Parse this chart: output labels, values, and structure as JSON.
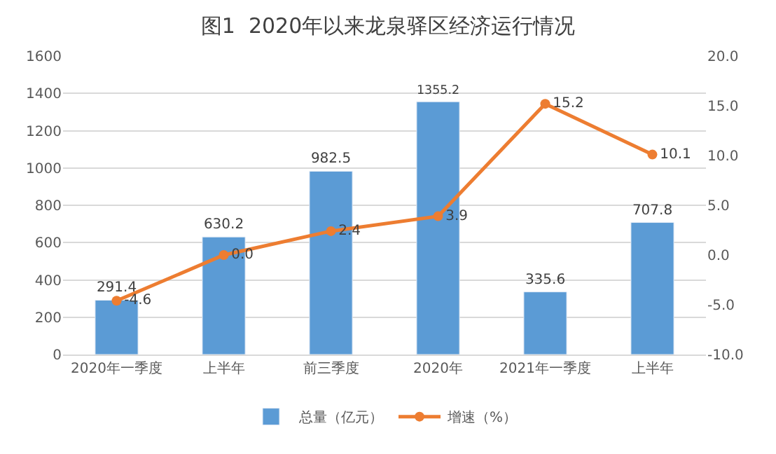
{
  "chart_data": {
    "type": "bar",
    "title": "图1  2020年以来龙泉驿区经济运行情况",
    "categories": [
      "2020年一季度",
      "上半年",
      "前三季度",
      "2020年",
      "2021年一季度",
      "上半年"
    ],
    "series": [
      {
        "name": "总量（亿元）",
        "color": "#5b9bd5",
        "values": [
          291.4,
          630.2,
          982.5,
          1355.2,
          335.6,
          707.8
        ],
        "value_labels": [
          "291.4",
          "630.2",
          "982.5",
          "1355.2",
          "335.6",
          "707.8"
        ]
      },
      {
        "name": "增速（%）",
        "type": "line",
        "axis": "y2",
        "color": "#ed7d31",
        "marker": "circle",
        "values": [
          -4.6,
          0.0,
          2.4,
          3.9,
          15.2,
          10.1
        ],
        "value_labels": [
          "-4.6",
          "0.0",
          "2.4",
          "3.9",
          "15.2",
          "10.1"
        ]
      }
    ],
    "ylim": [
      0,
      1600
    ],
    "yticks": [
      0,
      200,
      400,
      600,
      800,
      1000,
      1200,
      1400,
      1600
    ],
    "y2lim": [
      -10,
      20
    ],
    "y2ticks": [
      {
        "value": -10,
        "label": "-10.0"
      },
      {
        "value": -5,
        "label": "-5.0"
      },
      {
        "value": 0,
        "label": "0.0"
      },
      {
        "value": 5,
        "label": "5.0"
      },
      {
        "value": 10,
        "label": "10.0"
      },
      {
        "value": 15,
        "label": "15.0"
      },
      {
        "value": 20,
        "label": "20.0"
      }
    ],
    "grid": "y",
    "legend": "bottom"
  }
}
